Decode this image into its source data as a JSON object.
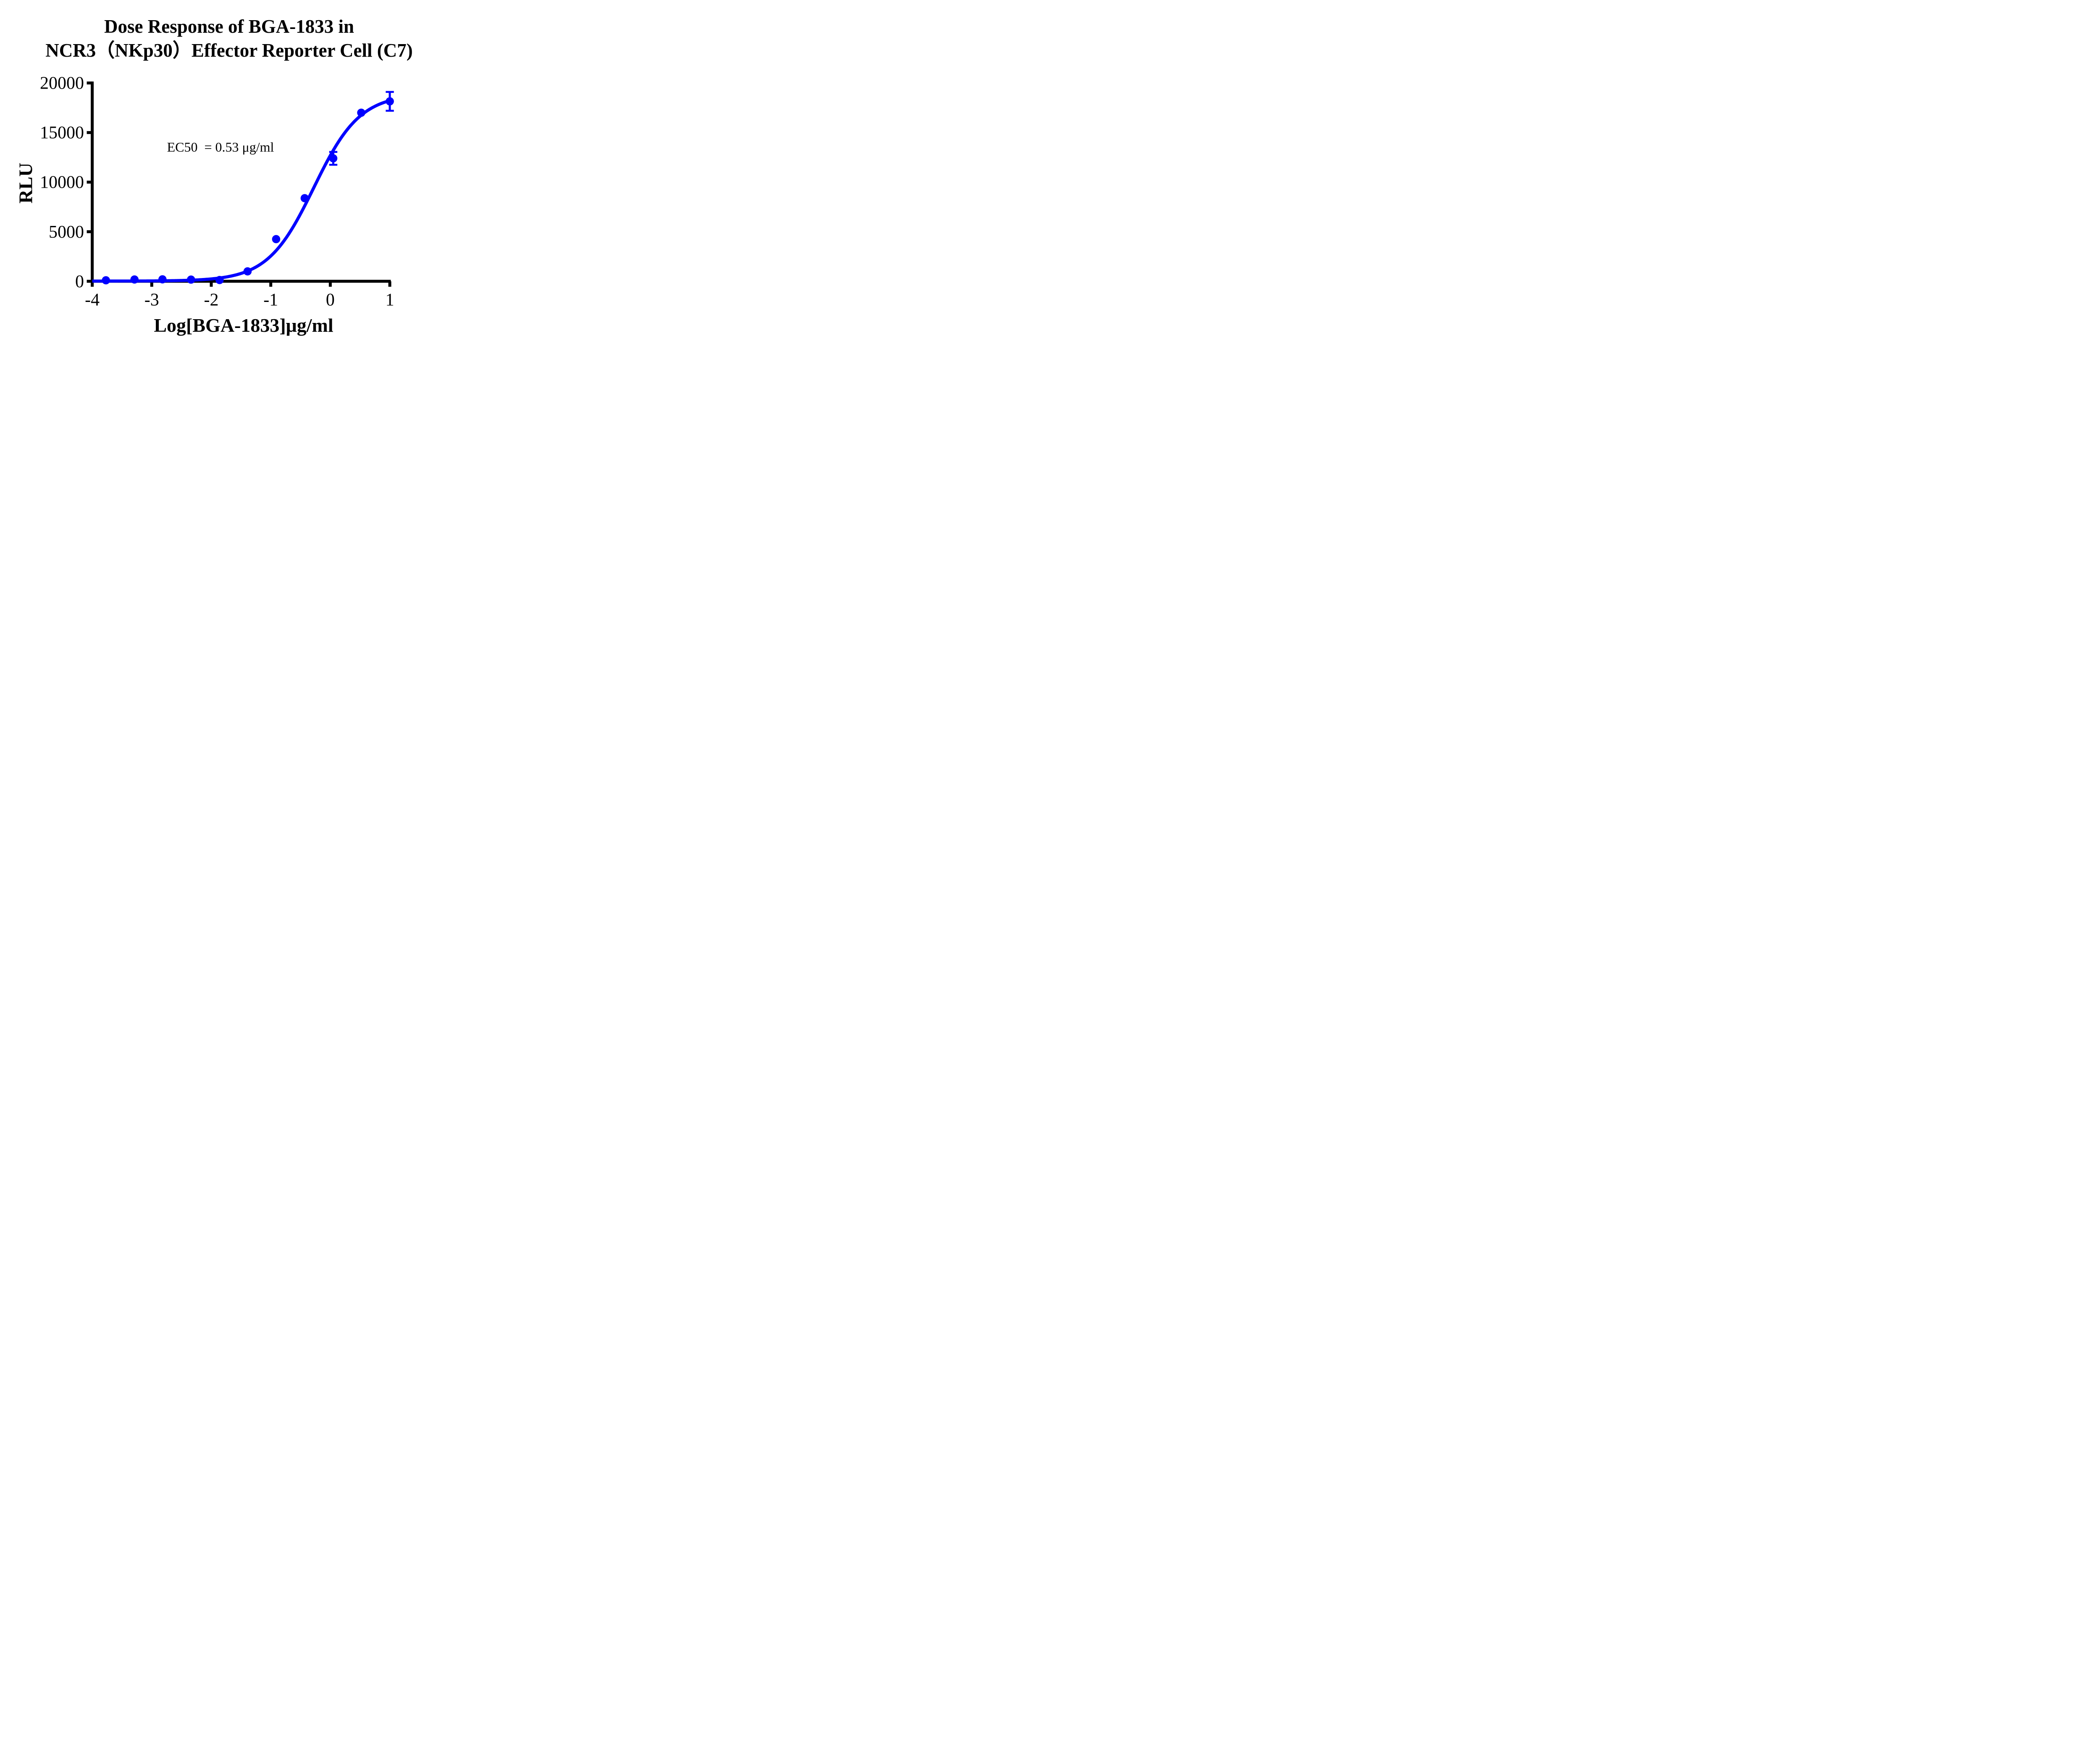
{
  "title": {
    "line1": "Dose Response of BGA-1833 in",
    "line2": "NCR3（NKp30）Effector Reporter Cell (C7)"
  },
  "annotation": {
    "ec50_text": "EC50  = 0.53 μg/ml"
  },
  "colors": {
    "series_blue": "#0000ff",
    "axis_black": "#000000",
    "background": "#ffffff"
  },
  "chart_data": {
    "type": "scatter",
    "title": "Dose Response of BGA-1833 in NCR3（NKp30）Effector Reporter Cell (C7)",
    "xlabel": "Log[BGA-1833]μg/ml",
    "ylabel": "RLU",
    "x_ticks": [
      -4,
      -3,
      -2,
      -1,
      0,
      1
    ],
    "y_ticks": [
      0,
      5000,
      10000,
      15000,
      20000
    ],
    "xlim": [
      -4,
      1
    ],
    "ylim": [
      0,
      20000
    ],
    "grid": false,
    "legend": null,
    "annotation": {
      "text": "EC50  = 0.53 μg/ml",
      "ec50_value_ug_ml": 0.53
    },
    "series": [
      {
        "name": "BGA-1833",
        "color": "#0000ff",
        "marker": "circle",
        "points": [
          {
            "x": -3.77,
            "y": 100,
            "yerr": null
          },
          {
            "x": -3.29,
            "y": 180,
            "yerr": null
          },
          {
            "x": -2.82,
            "y": 195,
            "yerr": null
          },
          {
            "x": -2.34,
            "y": 170,
            "yerr": null
          },
          {
            "x": -1.86,
            "y": 125,
            "yerr": null
          },
          {
            "x": -1.39,
            "y": 1000,
            "yerr": null
          },
          {
            "x": -0.91,
            "y": 4250,
            "yerr": null
          },
          {
            "x": -0.43,
            "y": 8380,
            "yerr": null
          },
          {
            "x": 0.05,
            "y": 12400,
            "yerr": 650
          },
          {
            "x": 0.52,
            "y": 17000,
            "yerr": null
          },
          {
            "x": 1.0,
            "y": 18150,
            "yerr": 950
          }
        ],
        "fit_curve": {
          "model": "4PL",
          "bottom": 20,
          "top": 18900,
          "log_ec50": -0.2757,
          "hill": 1.12,
          "x_start": -4,
          "x_end": 1.0
        }
      }
    ]
  }
}
